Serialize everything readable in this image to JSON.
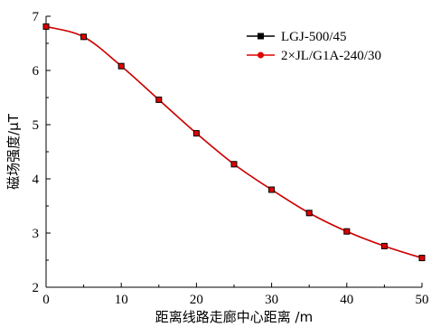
{
  "chart_data": {
    "type": "line",
    "xlabel": "距离线路走廊中心距离 /m",
    "ylabel": "磁场强度/μT",
    "xlim": [
      0,
      50
    ],
    "ylim": [
      2,
      7
    ],
    "xticks": [
      "0",
      "10",
      "20",
      "30",
      "40",
      "50"
    ],
    "yticks": [
      "2",
      "3",
      "4",
      "5",
      "6",
      "7"
    ],
    "legend_position": "top-right",
    "grid": false,
    "x": [
      0,
      5,
      10,
      15,
      20,
      25,
      30,
      35,
      40,
      45,
      50
    ],
    "series": [
      {
        "name": "LGJ-500/45",
        "color": "#000000",
        "marker": "square",
        "values": [
          6.81,
          6.62,
          6.08,
          5.46,
          4.84,
          4.27,
          3.8,
          3.37,
          3.03,
          2.76,
          2.54
        ]
      },
      {
        "name": "2×JL/G1A-240/30",
        "color": "#e00000",
        "marker": "circle",
        "values": [
          6.81,
          6.62,
          6.08,
          5.46,
          4.84,
          4.27,
          3.8,
          3.37,
          3.03,
          2.76,
          2.54
        ]
      }
    ]
  }
}
